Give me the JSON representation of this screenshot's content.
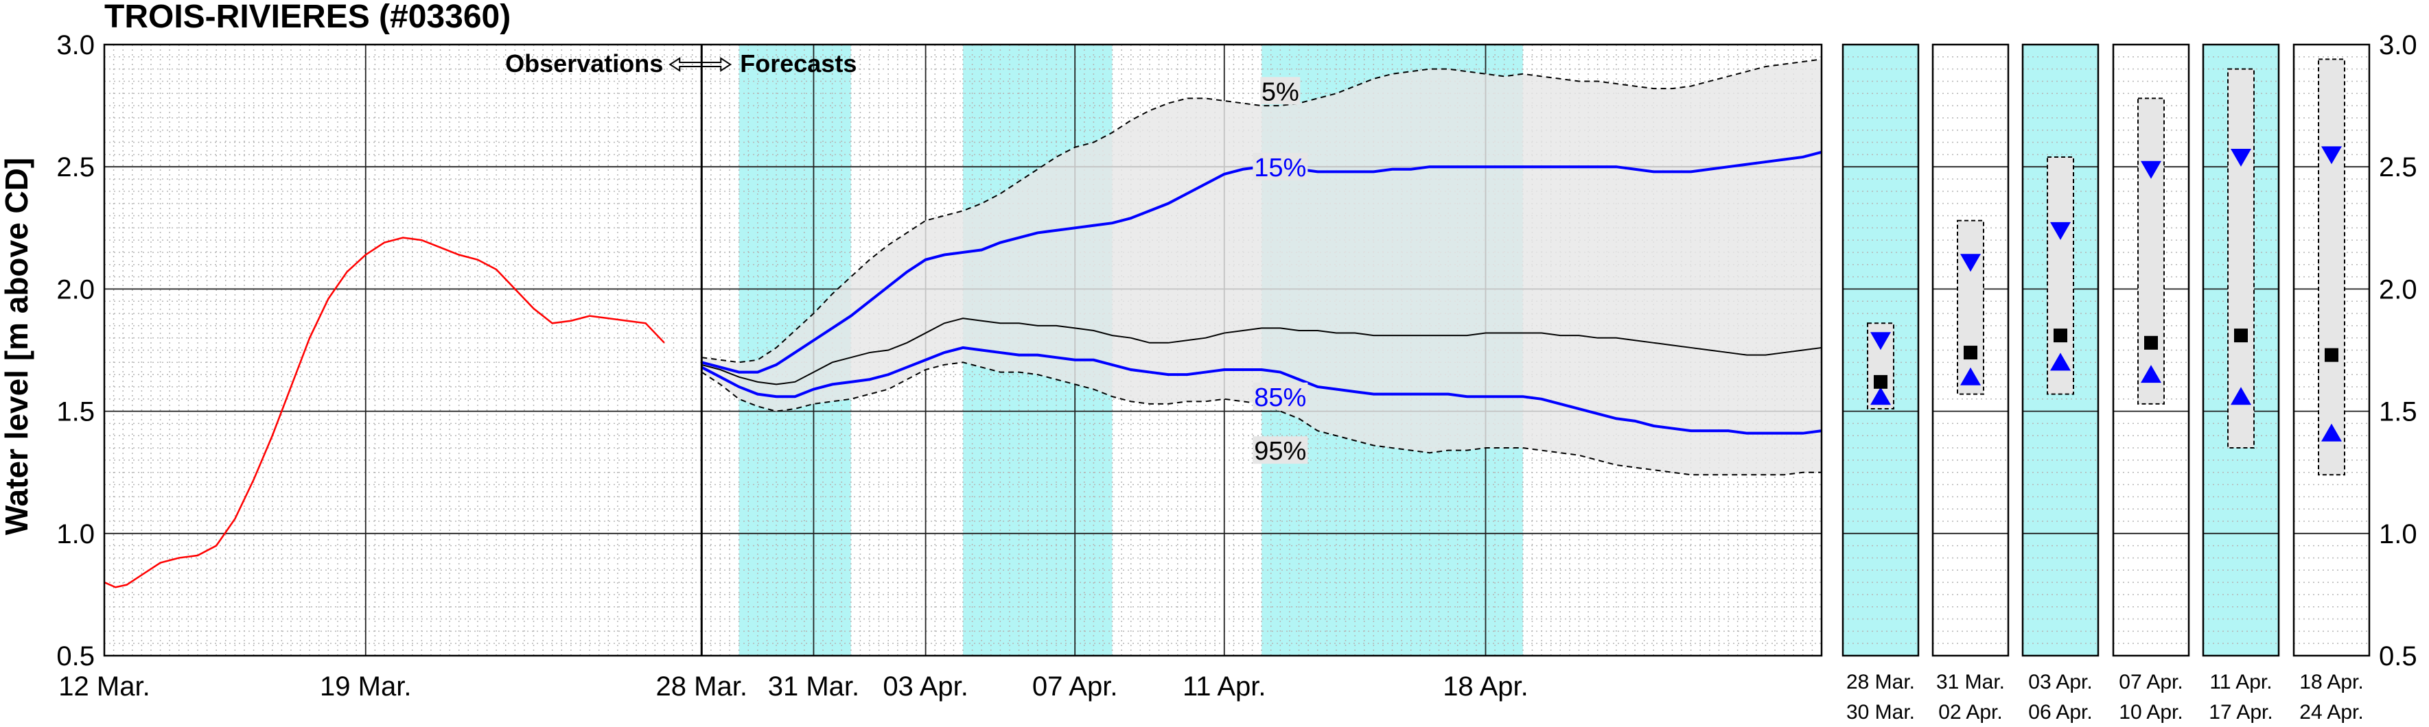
{
  "chart_data": {
    "type": "line",
    "title": "TROIS-RIVIERES (#03360)",
    "ylabel": "Water level [m above CD]",
    "ylim": [
      0.5,
      3.0
    ],
    "yticks": [
      "0.5",
      "1.0",
      "1.5",
      "2.0",
      "2.5",
      "3.0"
    ],
    "grid": true,
    "x_start": "12 Mar.",
    "x_end_day": 46,
    "xticks": [
      {
        "day": 0,
        "label": "12 Mar."
      },
      {
        "day": 7,
        "label": "19 Mar."
      },
      {
        "day": 16,
        "label": "28 Mar."
      },
      {
        "day": 19,
        "label": "31 Mar."
      },
      {
        "day": 22,
        "label": "03 Apr."
      },
      {
        "day": 26,
        "label": "07 Apr."
      },
      {
        "day": 30,
        "label": "11 Apr."
      },
      {
        "day": 37,
        "label": "18 Apr."
      }
    ],
    "shaded_periods": [
      [
        17,
        20
      ],
      [
        23,
        27
      ],
      [
        31,
        38
      ]
    ],
    "divider_day": 16,
    "annotation_observations": "Observations",
    "annotation_forecasts": "Forecasts",
    "observed": {
      "x": [
        0,
        0.3,
        0.6,
        1,
        1.5,
        2,
        2.5,
        3,
        3.5,
        4,
        4.5,
        5,
        5.5,
        6,
        6.5,
        7,
        7.5,
        8,
        8.5,
        9,
        9.5,
        10,
        10.5,
        11,
        11.5,
        12,
        12.5,
        13,
        13.5,
        14,
        14.5,
        15
      ],
      "y": [
        0.8,
        0.78,
        0.79,
        0.83,
        0.88,
        0.9,
        0.91,
        0.95,
        1.06,
        1.22,
        1.4,
        1.6,
        1.8,
        1.96,
        2.07,
        2.14,
        2.19,
        2.21,
        2.2,
        2.17,
        2.14,
        2.12,
        2.08,
        2.0,
        1.92,
        1.86,
        1.87,
        1.89,
        1.88,
        1.87,
        1.86,
        1.78
      ]
    },
    "forecast_x": [
      16,
      16.5,
      17,
      17.5,
      18,
      18.5,
      19,
      19.5,
      20,
      20.5,
      21,
      21.5,
      22,
      22.5,
      23,
      23.5,
      24,
      24.5,
      25,
      25.5,
      26,
      26.5,
      27,
      27.5,
      28,
      28.5,
      29,
      29.5,
      30,
      30.5,
      31,
      31.5,
      32,
      32.5,
      33,
      33.5,
      34,
      34.5,
      35,
      35.5,
      36,
      36.5,
      37,
      37.5,
      38,
      38.5,
      39,
      39.5,
      40,
      40.5,
      41,
      41.5,
      42,
      42.5,
      43,
      43.5,
      44,
      44.5,
      45,
      45.5,
      46
    ],
    "series": [
      {
        "name": "5%",
        "color": "#000000",
        "style": "dashed",
        "values": [
          1.72,
          1.71,
          1.7,
          1.71,
          1.76,
          1.83,
          1.9,
          1.98,
          2.05,
          2.12,
          2.18,
          2.23,
          2.28,
          2.3,
          2.32,
          2.35,
          2.39,
          2.44,
          2.49,
          2.54,
          2.58,
          2.6,
          2.64,
          2.69,
          2.73,
          2.76,
          2.78,
          2.78,
          2.77,
          2.76,
          2.75,
          2.75,
          2.76,
          2.78,
          2.8,
          2.83,
          2.86,
          2.88,
          2.89,
          2.9,
          2.9,
          2.89,
          2.88,
          2.87,
          2.88,
          2.87,
          2.86,
          2.85,
          2.85,
          2.84,
          2.83,
          2.82,
          2.82,
          2.83,
          2.85,
          2.87,
          2.89,
          2.91,
          2.92,
          2.93,
          2.94
        ]
      },
      {
        "name": "15%",
        "color": "#0000ff",
        "style": "solid",
        "values": [
          1.7,
          1.68,
          1.66,
          1.66,
          1.69,
          1.74,
          1.79,
          1.84,
          1.89,
          1.95,
          2.01,
          2.07,
          2.12,
          2.14,
          2.15,
          2.16,
          2.19,
          2.21,
          2.23,
          2.24,
          2.25,
          2.26,
          2.27,
          2.29,
          2.32,
          2.35,
          2.39,
          2.43,
          2.47,
          2.49,
          2.5,
          2.5,
          2.49,
          2.48,
          2.48,
          2.48,
          2.48,
          2.49,
          2.49,
          2.5,
          2.5,
          2.5,
          2.5,
          2.5,
          2.5,
          2.5,
          2.5,
          2.5,
          2.5,
          2.5,
          2.49,
          2.48,
          2.48,
          2.48,
          2.49,
          2.5,
          2.51,
          2.52,
          2.53,
          2.54,
          2.56
        ]
      },
      {
        "name": "median",
        "color": "#000000",
        "style": "solid",
        "values": [
          1.69,
          1.67,
          1.64,
          1.62,
          1.61,
          1.62,
          1.66,
          1.7,
          1.72,
          1.74,
          1.75,
          1.78,
          1.82,
          1.86,
          1.88,
          1.87,
          1.86,
          1.86,
          1.85,
          1.85,
          1.84,
          1.83,
          1.81,
          1.8,
          1.78,
          1.78,
          1.79,
          1.8,
          1.82,
          1.83,
          1.84,
          1.84,
          1.83,
          1.83,
          1.82,
          1.82,
          1.81,
          1.81,
          1.81,
          1.81,
          1.81,
          1.81,
          1.82,
          1.82,
          1.82,
          1.82,
          1.81,
          1.81,
          1.8,
          1.8,
          1.79,
          1.78,
          1.77,
          1.76,
          1.75,
          1.74,
          1.73,
          1.73,
          1.74,
          1.75,
          1.76
        ]
      },
      {
        "name": "85%",
        "color": "#0000ff",
        "style": "solid",
        "values": [
          1.68,
          1.64,
          1.6,
          1.57,
          1.56,
          1.56,
          1.59,
          1.61,
          1.62,
          1.63,
          1.65,
          1.68,
          1.71,
          1.74,
          1.76,
          1.75,
          1.74,
          1.73,
          1.73,
          1.72,
          1.71,
          1.71,
          1.69,
          1.67,
          1.66,
          1.65,
          1.65,
          1.66,
          1.67,
          1.67,
          1.67,
          1.66,
          1.63,
          1.6,
          1.59,
          1.58,
          1.57,
          1.57,
          1.57,
          1.57,
          1.57,
          1.56,
          1.56,
          1.56,
          1.56,
          1.55,
          1.53,
          1.51,
          1.49,
          1.47,
          1.46,
          1.44,
          1.43,
          1.42,
          1.42,
          1.42,
          1.41,
          1.41,
          1.41,
          1.41,
          1.42
        ]
      },
      {
        "name": "95%",
        "color": "#000000",
        "style": "dashed",
        "values": [
          1.66,
          1.61,
          1.55,
          1.52,
          1.5,
          1.51,
          1.53,
          1.54,
          1.55,
          1.57,
          1.59,
          1.63,
          1.67,
          1.69,
          1.7,
          1.68,
          1.66,
          1.66,
          1.65,
          1.63,
          1.61,
          1.59,
          1.56,
          1.54,
          1.53,
          1.53,
          1.54,
          1.54,
          1.55,
          1.54,
          1.53,
          1.5,
          1.47,
          1.42,
          1.4,
          1.38,
          1.36,
          1.35,
          1.34,
          1.33,
          1.34,
          1.34,
          1.35,
          1.35,
          1.35,
          1.34,
          1.33,
          1.32,
          1.3,
          1.28,
          1.27,
          1.26,
          1.25,
          1.24,
          1.24,
          1.24,
          1.24,
          1.24,
          1.24,
          1.25,
          1.25
        ]
      }
    ],
    "series_labels": [
      {
        "text": "5%",
        "color": "#000000",
        "day": 31.5,
        "y": 2.8
      },
      {
        "text": "15%",
        "color": "#0000ff",
        "day": 31.5,
        "y": 2.49
      },
      {
        "text": "85%",
        "color": "#0000ff",
        "day": 31.5,
        "y": 1.55
      },
      {
        "text": "95%",
        "color": "#000000",
        "day": 31.5,
        "y": 1.33
      }
    ],
    "period_panels": [
      {
        "label1": "28 Mar.",
        "label2": "30 Mar.",
        "shaded": true,
        "box_low": 1.51,
        "box_high": 1.86,
        "p15": 1.79,
        "median": 1.62,
        "p85": 1.56
      },
      {
        "label1": "31 Mar.",
        "label2": "02 Apr.",
        "shaded": false,
        "box_low": 1.57,
        "box_high": 2.28,
        "p15": 2.11,
        "median": 1.74,
        "p85": 1.64
      },
      {
        "label1": "03 Apr.",
        "label2": "06 Apr.",
        "shaded": true,
        "box_low": 1.57,
        "box_high": 2.54,
        "p15": 2.24,
        "median": 1.81,
        "p85": 1.7
      },
      {
        "label1": "07 Apr.",
        "label2": "10 Apr.",
        "shaded": false,
        "box_low": 1.53,
        "box_high": 2.78,
        "p15": 2.49,
        "median": 1.78,
        "p85": 1.65
      },
      {
        "label1": "11 Apr.",
        "label2": "17 Apr.",
        "shaded": true,
        "box_low": 1.35,
        "box_high": 2.9,
        "p15": 2.54,
        "median": 1.81,
        "p85": 1.56
      },
      {
        "label1": "18 Apr.",
        "label2": "24 Apr.",
        "shaded": false,
        "box_low": 1.24,
        "box_high": 2.94,
        "p15": 2.55,
        "median": 1.73,
        "p85": 1.41
      }
    ],
    "colors": {
      "observed": "#ff0000",
      "percentile_15_85": "#0000ff",
      "band": "#e6e6e6",
      "shade": "#b3f5f5"
    }
  }
}
